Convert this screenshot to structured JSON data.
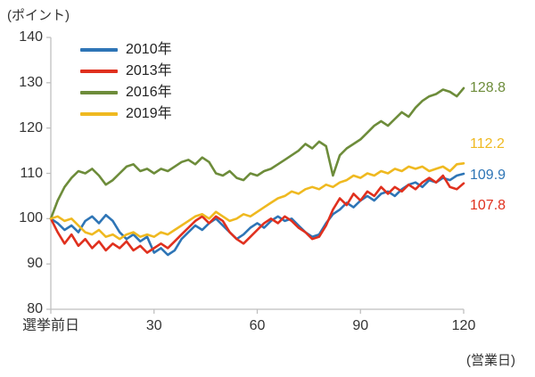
{
  "chart_data": {
    "type": "line",
    "y_unit_label": "(ポイント)",
    "x_unit_label": "(営業日)",
    "x_step": 2,
    "x_axis": {
      "range": [
        0,
        120
      ],
      "ticks": [
        "選挙前日",
        "30",
        "60",
        "90",
        "120"
      ],
      "tick_x": [
        0,
        30,
        60,
        90,
        120
      ]
    },
    "y_axis": {
      "range": [
        80,
        140
      ],
      "ticks": [
        "140",
        "130",
        "120",
        "110",
        "100",
        "90",
        "80"
      ]
    },
    "legend_position": "top-left-inside",
    "grid": false,
    "series": [
      {
        "name": "2010年",
        "color": "#2e75b6",
        "end_label": "109.9",
        "values": [
          100,
          99,
          97.5,
          98.5,
          97,
          99.5,
          100.5,
          99,
          100.8,
          99.5,
          97,
          95.5,
          96.5,
          95,
          96,
          92.5,
          93.5,
          92,
          93,
          95.5,
          97,
          98.5,
          97.5,
          99,
          100,
          98.5,
          97,
          95.5,
          96.5,
          98,
          99,
          98,
          99.5,
          100.5,
          99.5,
          100,
          98.5,
          97,
          96,
          96.5,
          99,
          101,
          102,
          103.5,
          102.5,
          104,
          105,
          104,
          105.5,
          106,
          105,
          106.5,
          107.5,
          108,
          107,
          108.5,
          108,
          109,
          108.5,
          109.5,
          109.9
        ]
      },
      {
        "name": "2013年",
        "color": "#e0301e",
        "end_label": "107.8",
        "values": [
          100,
          97,
          94.5,
          96.5,
          94,
          95.5,
          93.5,
          95,
          93,
          94.5,
          93.5,
          95,
          93,
          94,
          92.5,
          93.5,
          94.5,
          93.5,
          95,
          96.5,
          98,
          99.5,
          100.5,
          99,
          100.5,
          99.5,
          97,
          95.5,
          94.5,
          96,
          97.5,
          99,
          100,
          99,
          100.5,
          99.5,
          98,
          97,
          95.5,
          96,
          98.5,
          102,
          104.5,
          103,
          105.5,
          104,
          106,
          105,
          107,
          105.5,
          107,
          106,
          107.5,
          106.5,
          108,
          109,
          108,
          109.5,
          107,
          106.5,
          107.8
        ]
      },
      {
        "name": "2016年",
        "color": "#6d8c3a",
        "end_label": "128.8",
        "values": [
          100,
          104,
          107,
          109,
          110.5,
          110,
          111,
          109.5,
          107.5,
          108.5,
          110,
          111.5,
          112,
          110.5,
          111,
          110,
          111,
          110.5,
          111.5,
          112.5,
          113,
          112,
          113.5,
          112.5,
          110,
          109.5,
          110.5,
          109,
          108.5,
          110,
          109.5,
          110.5,
          111,
          112,
          113,
          114,
          115,
          116.5,
          115.5,
          117,
          116,
          109.5,
          114,
          115.5,
          116.5,
          117.5,
          119,
          120.5,
          121.5,
          120.5,
          122,
          123.5,
          122.5,
          124.5,
          126,
          127,
          127.5,
          128.5,
          128,
          127,
          128.8
        ]
      },
      {
        "name": "2019年",
        "color": "#efb920",
        "end_label": "112.2",
        "values": [
          100,
          100.5,
          99.5,
          100,
          98.5,
          97,
          96.5,
          97.5,
          96,
          96.5,
          95.5,
          96.5,
          97,
          96,
          96.5,
          96,
          97,
          96.5,
          97.5,
          98.5,
          99.5,
          100.5,
          101,
          100,
          101.5,
          100.5,
          99.5,
          100,
          101,
          100.5,
          101.5,
          102.5,
          103.5,
          104.5,
          105,
          106,
          105.5,
          106.5,
          107,
          106.5,
          107.5,
          107,
          108,
          108.5,
          109.5,
          109,
          110,
          109.5,
          110.5,
          110,
          111,
          110.5,
          111.5,
          111,
          111.5,
          110.5,
          111,
          111.5,
          110.5,
          112,
          112.2
        ]
      }
    ]
  }
}
